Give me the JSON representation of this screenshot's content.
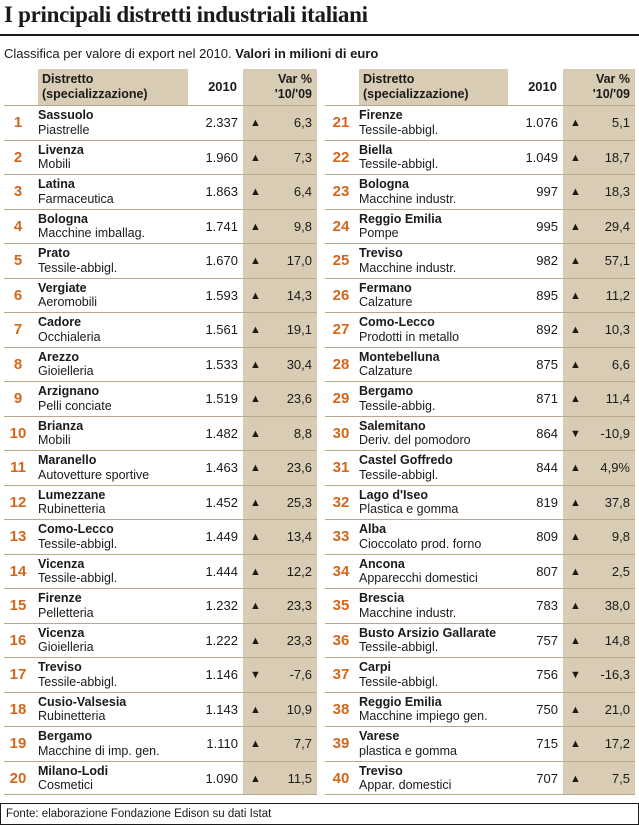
{
  "title": "I principali distretti industriali italiani",
  "subtitle_plain": "Classifica per valore di export nel 2010.",
  "subtitle_bold": "Valori in milioni di euro",
  "header": {
    "district_line1": "Distretto",
    "district_line2": "(specializzazione)",
    "year": "2010",
    "var_line1": "Var %",
    "var_line2": "'10/'09"
  },
  "arrows": {
    "up": "▲",
    "down": "▼"
  },
  "left_rows": [
    {
      "rank": "1",
      "district": "Sassuolo",
      "spec": "Piastrelle",
      "value": "2.337",
      "dir": "up",
      "var": "6,3"
    },
    {
      "rank": "2",
      "district": "Livenza",
      "spec": "Mobili",
      "value": "1.960",
      "dir": "up",
      "var": "7,3"
    },
    {
      "rank": "3",
      "district": "Latina",
      "spec": "Farmaceutica",
      "value": "1.863",
      "dir": "up",
      "var": "6,4"
    },
    {
      "rank": "4",
      "district": "Bologna",
      "spec": "Macchine imballag.",
      "value": "1.741",
      "dir": "up",
      "var": "9,8"
    },
    {
      "rank": "5",
      "district": "Prato",
      "spec": "Tessile-abbigl.",
      "value": "1.670",
      "dir": "up",
      "var": "17,0"
    },
    {
      "rank": "6",
      "district": "Vergiate",
      "spec": "Aeromobili",
      "value": "1.593",
      "dir": "up",
      "var": "14,3"
    },
    {
      "rank": "7",
      "district": "Cadore",
      "spec": "Occhialeria",
      "value": "1.561",
      "dir": "up",
      "var": "19,1"
    },
    {
      "rank": "8",
      "district": "Arezzo",
      "spec": "Gioielleria",
      "value": "1.533",
      "dir": "up",
      "var": "30,4"
    },
    {
      "rank": "9",
      "district": "Arzignano",
      "spec": "Pelli conciate",
      "value": "1.519",
      "dir": "up",
      "var": "23,6"
    },
    {
      "rank": "10",
      "district": "Brianza",
      "spec": "Mobili",
      "value": "1.482",
      "dir": "up",
      "var": "8,8"
    },
    {
      "rank": "11",
      "district": "Maranello",
      "spec": "Autovetture sportive",
      "value": "1.463",
      "dir": "up",
      "var": "23,6"
    },
    {
      "rank": "12",
      "district": "Lumezzane",
      "spec": "Rubinetteria",
      "value": "1.452",
      "dir": "up",
      "var": "25,3"
    },
    {
      "rank": "13",
      "district": "Como-Lecco",
      "spec": "Tessile-abbigl.",
      "value": "1.449",
      "dir": "up",
      "var": "13,4"
    },
    {
      "rank": "14",
      "district": "Vicenza",
      "spec": "Tessile-abbigl.",
      "value": "1.444",
      "dir": "up",
      "var": "12,2"
    },
    {
      "rank": "15",
      "district": "Firenze",
      "spec": "Pelletteria",
      "value": "1.232",
      "dir": "up",
      "var": "23,3"
    },
    {
      "rank": "16",
      "district": "Vicenza",
      "spec": "Gioielleria",
      "value": "1.222",
      "dir": "up",
      "var": "23,3"
    },
    {
      "rank": "17",
      "district": "Treviso",
      "spec": "Tessile-abbigl.",
      "value": "1.146",
      "dir": "down",
      "var": "-7,6"
    },
    {
      "rank": "18",
      "district": "Cusio-Valsesia",
      "spec": "Rubinetteria",
      "value": "1.143",
      "dir": "up",
      "var": "10,9"
    },
    {
      "rank": "19",
      "district": "Bergamo",
      "spec": "Macchine di imp. gen.",
      "value": "1.110",
      "dir": "up",
      "var": "7,7"
    },
    {
      "rank": "20",
      "district": "Milano-Lodi",
      "spec": "Cosmetici",
      "value": "1.090",
      "dir": "up",
      "var": "11,5"
    }
  ],
  "right_rows": [
    {
      "rank": "21",
      "district": "Firenze",
      "spec": "Tessile-abbigl.",
      "value": "1.076",
      "dir": "up",
      "var": "5,1"
    },
    {
      "rank": "22",
      "district": "Biella",
      "spec": "Tessile-abbigl.",
      "value": "1.049",
      "dir": "up",
      "var": "18,7"
    },
    {
      "rank": "23",
      "district": "Bologna",
      "spec": "Macchine industr.",
      "value": "997",
      "dir": "up",
      "var": "18,3"
    },
    {
      "rank": "24",
      "district": "Reggio Emilia",
      "spec": "Pompe",
      "value": "995",
      "dir": "up",
      "var": "29,4"
    },
    {
      "rank": "25",
      "district": "Treviso",
      "spec": "Macchine industr.",
      "value": "982",
      "dir": "up",
      "var": "57,1"
    },
    {
      "rank": "26",
      "district": "Fermano",
      "spec": "Calzature",
      "value": "895",
      "dir": "up",
      "var": "11,2"
    },
    {
      "rank": "27",
      "district": "Como-Lecco",
      "spec": "Prodotti in metallo",
      "value": "892",
      "dir": "up",
      "var": "10,3"
    },
    {
      "rank": "28",
      "district": "Montebelluna",
      "spec": "Calzature",
      "value": "875",
      "dir": "up",
      "var": "6,6"
    },
    {
      "rank": "29",
      "district": "Bergamo",
      "spec": "Tessile-abbig.",
      "value": "871",
      "dir": "up",
      "var": "11,4"
    },
    {
      "rank": "30",
      "district": "Salemitano",
      "spec": "Deriv. del pomodoro",
      "value": "864",
      "dir": "down",
      "var": "-10,9"
    },
    {
      "rank": "31",
      "district": "Castel Goffredo",
      "spec": "Tessile-abbigl.",
      "value": "844",
      "dir": "up",
      "var": "4,9%"
    },
    {
      "rank": "32",
      "district": "Lago d'Iseo",
      "spec": "Plastica e gomma",
      "value": "819",
      "dir": "up",
      "var": "37,8"
    },
    {
      "rank": "33",
      "district": "Alba",
      "spec": "Cioccolato prod. forno",
      "value": "809",
      "dir": "up",
      "var": "9,8"
    },
    {
      "rank": "34",
      "district": "Ancona",
      "spec": "Apparecchi domestici",
      "value": "807",
      "dir": "up",
      "var": "2,5"
    },
    {
      "rank": "35",
      "district": "Brescia",
      "spec": "Macchine industr.",
      "value": "783",
      "dir": "up",
      "var": "38,0"
    },
    {
      "rank": "36",
      "district": "Busto Arsizio Gallarate",
      "spec": "Tessile-abbigl.",
      "value": "757",
      "dir": "up",
      "var": "14,8"
    },
    {
      "rank": "37",
      "district": "Carpi",
      "spec": "Tessile-abbigl.",
      "value": "756",
      "dir": "down",
      "var": "-16,3"
    },
    {
      "rank": "38",
      "district": "Reggio Emilia",
      "spec": "Macchine impiego gen.",
      "value": "750",
      "dir": "up",
      "var": "21,0"
    },
    {
      "rank": "39",
      "district": "Varese",
      "spec": "plastica e gomma",
      "value": "715",
      "dir": "up",
      "var": "17,2"
    },
    {
      "rank": "40",
      "district": "Treviso",
      "spec": "Appar. domestici",
      "value": "707",
      "dir": "up",
      "var": "7,5"
    }
  ],
  "source": "Fonte: elaborazione Fondazione Edison su dati Istat"
}
